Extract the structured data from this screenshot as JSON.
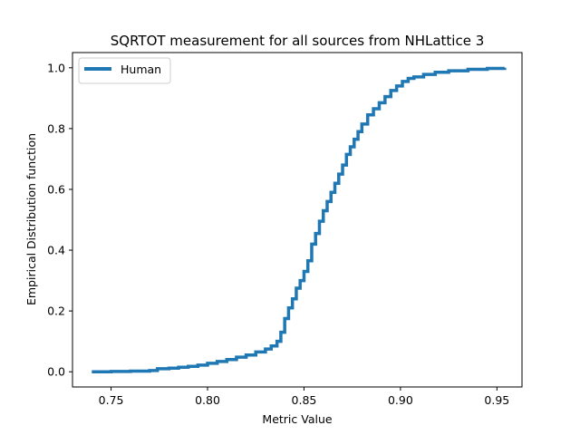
{
  "chart_data": {
    "type": "line",
    "title": "SQRTOT measurement for all sources from NHLattice 3",
    "xlabel": "Metric Value",
    "ylabel": "Empirical Distribution function",
    "xlim": [
      0.73,
      0.963
    ],
    "ylim": [
      -0.05,
      1.05
    ],
    "xticks": [
      0.75,
      0.8,
      0.85,
      0.9,
      0.95
    ],
    "xtick_labels": [
      "0.75",
      "0.80",
      "0.85",
      "0.90",
      "0.95"
    ],
    "yticks": [
      0.0,
      0.2,
      0.4,
      0.6,
      0.8,
      1.0
    ],
    "ytick_labels": [
      "0.0",
      "0.2",
      "0.4",
      "0.6",
      "0.8",
      "1.0"
    ],
    "grid": false,
    "legend_position": "top-left",
    "series": [
      {
        "name": "Human",
        "color": "#1f77b4",
        "step": true,
        "x": [
          0.74,
          0.75,
          0.76,
          0.77,
          0.774,
          0.78,
          0.785,
          0.79,
          0.795,
          0.8,
          0.805,
          0.81,
          0.815,
          0.82,
          0.825,
          0.83,
          0.833,
          0.836,
          0.838,
          0.84,
          0.842,
          0.844,
          0.846,
          0.848,
          0.85,
          0.852,
          0.854,
          0.856,
          0.858,
          0.86,
          0.862,
          0.864,
          0.866,
          0.868,
          0.87,
          0.872,
          0.874,
          0.876,
          0.878,
          0.88,
          0.883,
          0.886,
          0.889,
          0.892,
          0.895,
          0.898,
          0.901,
          0.904,
          0.907,
          0.912,
          0.918,
          0.925,
          0.935,
          0.945,
          0.954
        ],
        "y": [
          0.0,
          0.001,
          0.002,
          0.004,
          0.01,
          0.012,
          0.015,
          0.018,
          0.022,
          0.028,
          0.034,
          0.04,
          0.048,
          0.055,
          0.065,
          0.075,
          0.085,
          0.1,
          0.13,
          0.175,
          0.21,
          0.24,
          0.275,
          0.3,
          0.33,
          0.365,
          0.42,
          0.455,
          0.495,
          0.53,
          0.56,
          0.59,
          0.62,
          0.65,
          0.68,
          0.715,
          0.74,
          0.765,
          0.79,
          0.815,
          0.845,
          0.865,
          0.885,
          0.905,
          0.925,
          0.94,
          0.955,
          0.965,
          0.97,
          0.978,
          0.985,
          0.99,
          0.995,
          0.998,
          1.0
        ]
      }
    ]
  }
}
